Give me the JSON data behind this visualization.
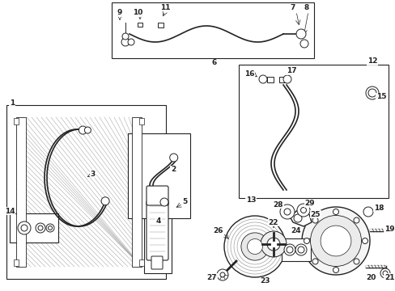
{
  "bg_color": "#ffffff",
  "fig_width": 4.89,
  "fig_height": 3.6,
  "dpi": 100,
  "gray": "#222222",
  "lgray": "#888888"
}
